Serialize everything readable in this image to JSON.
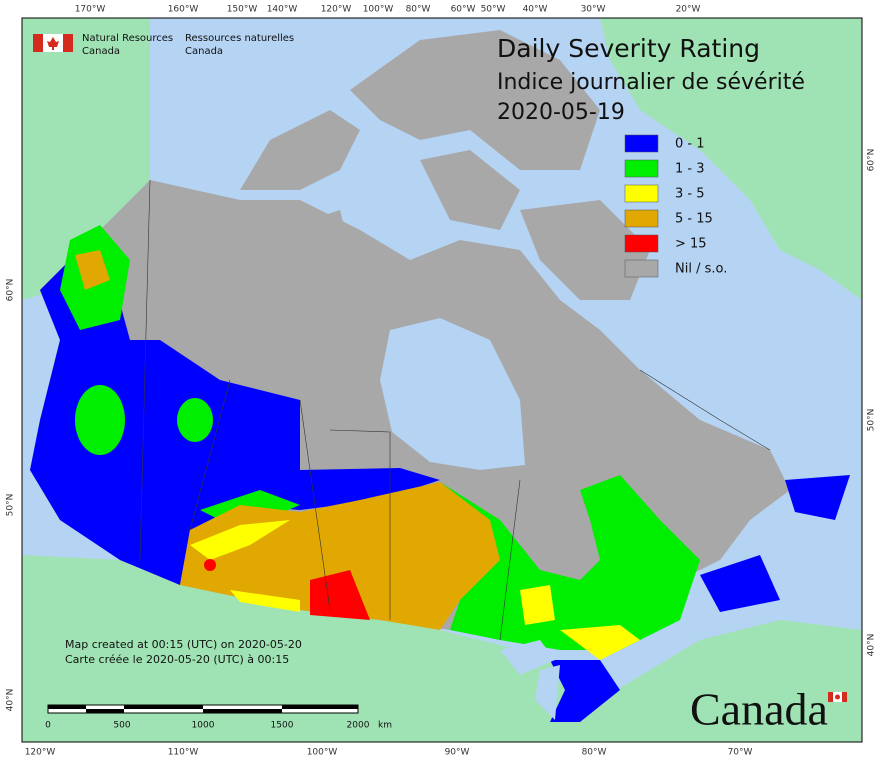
{
  "logo": {
    "lines_en": [
      "Natural Resources",
      "Canada"
    ],
    "lines_fr": [
      "Ressources naturelles",
      "Canada"
    ]
  },
  "title": {
    "lines": [
      "Daily Severity Rating",
      "Indice journalier de sévérité",
      "2020-05-19"
    ]
  },
  "legend": {
    "items": [
      {
        "label": "0 - 1",
        "color": "#0000ff"
      },
      {
        "label": "1 - 3",
        "color": "#00ee00"
      },
      {
        "label": "3 - 5",
        "color": "#ffff00"
      },
      {
        "label": "5 - 15",
        "color": "#e0a800"
      },
      {
        "label": "> 15",
        "color": "#ff0000"
      },
      {
        "label": "Nil / s.o.",
        "color": "#a8a8a8"
      }
    ]
  },
  "notes": [
    "Map created at 00:15 (UTC) on 2020-05-20",
    "Carte créée le 2020-05-20 (UTC) à 00:15"
  ],
  "scale_bar": {
    "labels": [
      "0",
      "500",
      "1000",
      "1500",
      "2000"
    ],
    "unit": "km"
  },
  "graticule": {
    "top": [
      "170°W",
      "160°W",
      "150°W",
      "140°W",
      "120°W",
      "100°W",
      "80°W",
      "60°W",
      "50°W",
      "40°W",
      "30°W",
      "20°W"
    ],
    "bottom": [
      "120°W",
      "110°W",
      "100°W",
      "90°W",
      "80°W",
      "70°W"
    ],
    "left": [
      "60°N",
      "50°N",
      "40°N"
    ],
    "right": [
      "60°N",
      "50°N",
      "40°N"
    ]
  },
  "wordmark": "Canada"
}
